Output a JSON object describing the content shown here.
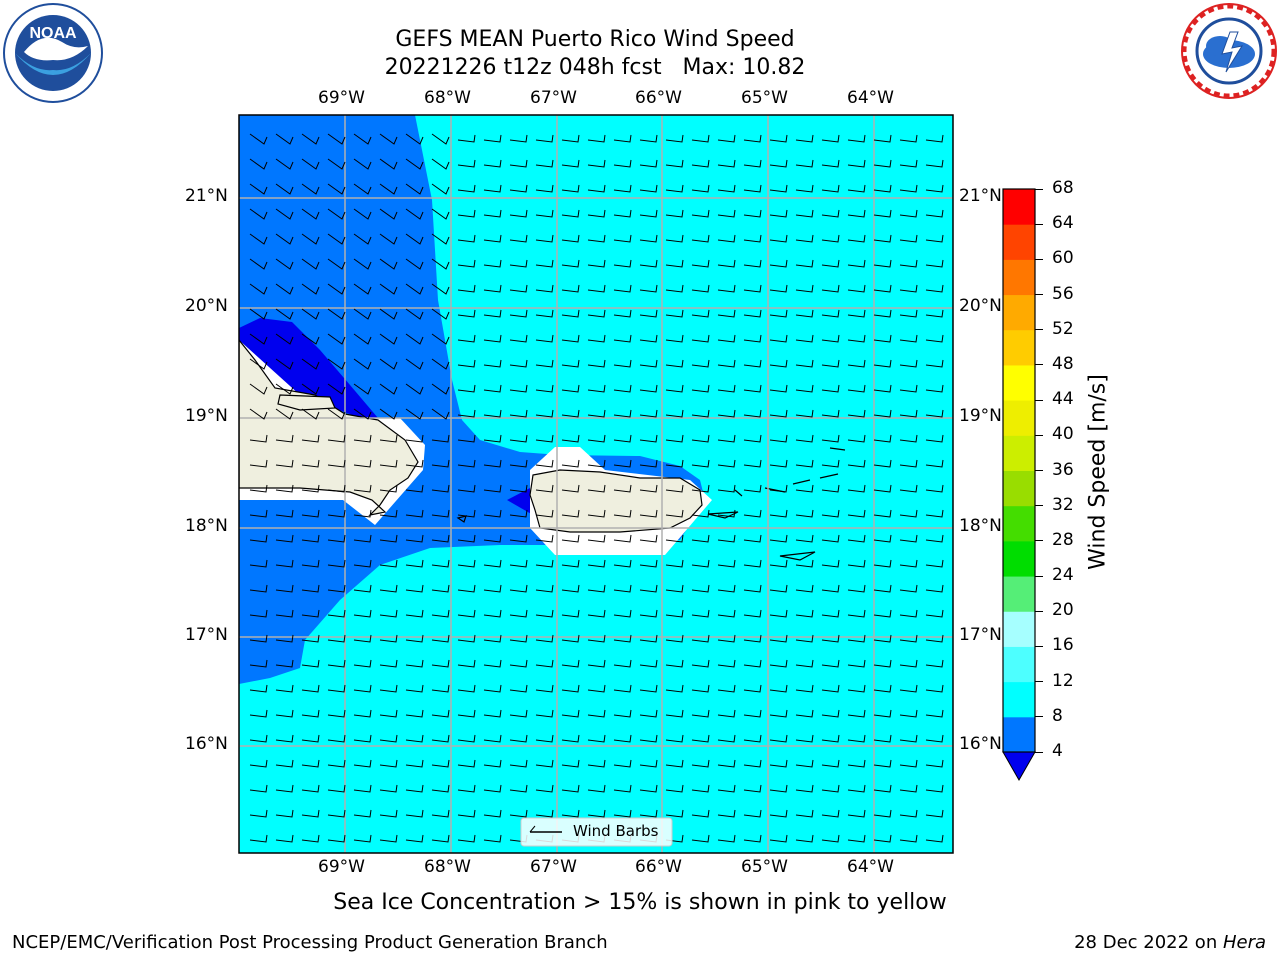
{
  "title_line1": "GEFS MEAN Puerto Rico Wind Speed",
  "title_line2": "20221226 t12z 048h fcst   Max: 10.82",
  "lon_ticks": [
    "69°W",
    "68°W",
    "67°W",
    "66°W",
    "65°W",
    "64°W"
  ],
  "lat_ticks": [
    "21°N",
    "20°N",
    "19°N",
    "18°N",
    "17°N",
    "16°N"
  ],
  "legend_label": "Wind Barbs",
  "colorbar": {
    "title": "Wind Speed [m/s]",
    "ticks": [
      "68",
      "64",
      "60",
      "56",
      "52",
      "48",
      "44",
      "40",
      "36",
      "32",
      "28",
      "24",
      "20",
      "16",
      "12",
      "8",
      "4"
    ],
    "colors": [
      "#0000ee",
      "#0077ff",
      "#00ffff",
      "#4dffff",
      "#a6ffff",
      "#55ee77",
      "#00dd00",
      "#44dd00",
      "#99dd00",
      "#ccee00",
      "#eeee00",
      "#ffff00",
      "#ffcc00",
      "#ffaa00",
      "#ff7700",
      "#ff4400",
      "#ff0000"
    ]
  },
  "sea_ice_note": "Sea Ice Concentration > 15% is shown in pink to yellow",
  "footer_left": "NCEP/EMC/Verification Post Processing Product Generation Branch",
  "footer_right_date": "28 Dec 2022 on ",
  "footer_right_machine": "Hera",
  "logos": {
    "left": "noaa-logo",
    "right": "nws-logo"
  }
}
